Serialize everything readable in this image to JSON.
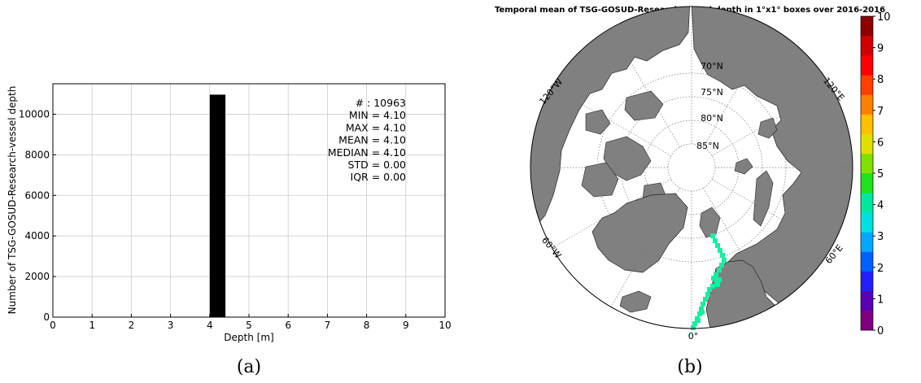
{
  "panel_a": {
    "caption": "(a)",
    "chart_data": {
      "type": "bar",
      "xlabel": "Depth [m]",
      "ylabel": "Number of TSG-GOSUD-Research-vessel depth",
      "xlim": [
        0,
        10
      ],
      "ylim": [
        0,
        11500
      ],
      "x_ticks": [
        0,
        1,
        2,
        3,
        4,
        5,
        6,
        7,
        8,
        9,
        10
      ],
      "y_ticks": [
        0,
        2000,
        4000,
        6000,
        8000,
        10000
      ],
      "grid": true,
      "bars": [
        {
          "x_start": 4.0,
          "x_end": 4.4,
          "count": 10963
        }
      ],
      "stats": [
        "# : 10963",
        "MIN = 4.10",
        "MAX =  4.10",
        "MEAN = 4.10",
        "MEDIAN = 4.10",
        "STD = 0.00",
        "IQR = 0.00"
      ]
    }
  },
  "panel_b": {
    "caption": "(b)",
    "title": "Temporal mean of TSG-GOSUD-Research-vessel depth in 1°x1° boxes over 2016-2016",
    "chart_data": {
      "type": "heatmap",
      "projection": "north polar stereographic",
      "lat_labels": [
        "70°N",
        "75°N",
        "80°N",
        "85°N"
      ],
      "lon_labels": [
        "120°W",
        "120°E",
        "60°W",
        "60°E",
        "0°"
      ],
      "colorbar": {
        "min": 0,
        "max": 10,
        "ticks": [
          "0",
          "1",
          "2",
          "3",
          "4",
          "5",
          "6",
          "7",
          "8",
          "9",
          "10"
        ],
        "colors": [
          "#7f007f",
          "#5a00b4",
          "#2020ff",
          "#0060ff",
          "#00a8ff",
          "#00e0e0",
          "#00e8a0",
          "#20e020",
          "#80e000",
          "#e0e000",
          "#ffc000",
          "#ff8000",
          "#ff4000",
          "#ff0000",
          "#d00000",
          "#8b0000"
        ]
      },
      "track_value": 4.1,
      "track_color": "#10f0a0"
    }
  }
}
